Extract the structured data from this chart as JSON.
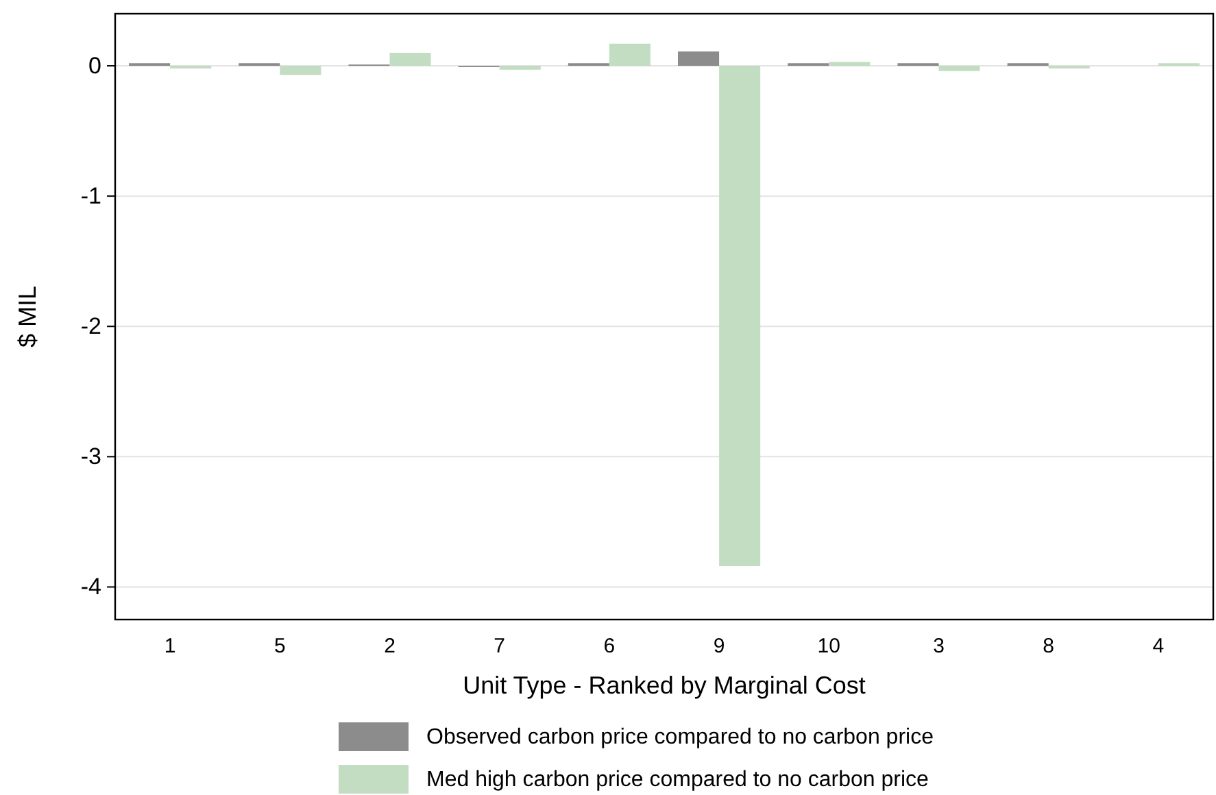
{
  "chart_data": {
    "type": "bar",
    "xlabel": "Unit Type - Ranked by Marginal Cost",
    "ylabel": "$ MIL",
    "categories": [
      "1",
      "5",
      "2",
      "7",
      "6",
      "9",
      "10",
      "3",
      "8",
      "4"
    ],
    "series": [
      {
        "name": "Observed carbon price compared to no carbon price",
        "color": "#8c8c8c",
        "values": [
          0.02,
          0.02,
          0.01,
          -0.01,
          0.02,
          0.11,
          0.02,
          0.02,
          0.02,
          null
        ]
      },
      {
        "name": "Med high carbon price compared to no carbon price",
        "color": "#c3ddc3",
        "values": [
          -0.02,
          -0.07,
          0.1,
          -0.03,
          0.17,
          -3.84,
          0.03,
          -0.04,
          -0.02,
          0.02
        ]
      }
    ],
    "ylim": [
      -4.25,
      0.4
    ],
    "yticks": [
      0,
      -1,
      -2,
      -3,
      -4
    ],
    "grid": "y",
    "legend": "bottom"
  }
}
